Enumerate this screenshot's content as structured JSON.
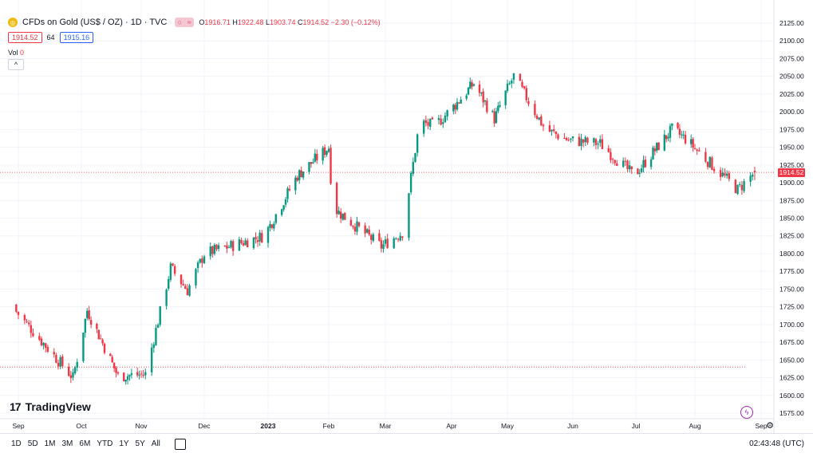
{
  "header": {
    "symbol_title": "CFDs on Gold (US$ / OZ) · 1D · TVC",
    "ohlc": {
      "o_label": "O",
      "o": "1916.71",
      "h_label": "H",
      "h": "1922.48",
      "l_label": "L",
      "l": "1903.74",
      "c_label": "C",
      "c": "1914.52",
      "change": "−2.30 (−0.12%)"
    },
    "bid": "1914.52",
    "spread": "64",
    "ask": "1915.16",
    "vol_label": "Vol",
    "vol_value": "0",
    "collapse_glyph": "^"
  },
  "colors": {
    "up": "#089981",
    "down": "#f23645",
    "grid": "#f0f3fa",
    "accent": "#2962ff"
  },
  "brand": {
    "logo_mark": "17",
    "logo_text": "TradingView"
  },
  "bottom_bar": {
    "ranges": [
      "1D",
      "5D",
      "1M",
      "3M",
      "6M",
      "YTD",
      "1Y",
      "5Y",
      "All"
    ],
    "clock": "02:43:48 (UTC)"
  },
  "icons": {
    "calendar": "calendar-range-icon",
    "settings": "gear-icon",
    "flash": "flash-icon",
    "symbol": "gold-coin-icon"
  },
  "chart_data": {
    "type": "candlestick",
    "y_ticks": [
      "2125.00",
      "2100.00",
      "2075.00",
      "2050.00",
      "2025.00",
      "2000.00",
      "1975.00",
      "1950.00",
      "1925.00",
      "1900.00",
      "1875.00",
      "1850.00",
      "1825.00",
      "1800.00",
      "1775.00",
      "1750.00",
      "1725.00",
      "1700.00",
      "1675.00",
      "1650.00",
      "1625.00",
      "1600.00",
      "1575.00"
    ],
    "ylim": [
      1565,
      2135
    ],
    "x_ticks": [
      "Sep",
      "Oct",
      "Nov",
      "Dec",
      "2023",
      "Feb",
      "Mar",
      "Apr",
      "May",
      "Jun",
      "Jul",
      "Aug",
      "Sep"
    ],
    "last_price": 1914.52,
    "last_price_label": "1914.52",
    "reference_line": 1640,
    "anchors": [
      {
        "date": "Aug 31",
        "close": 1718
      },
      {
        "date": "Sep 27",
        "close": 1625
      },
      {
        "date": "Oct 4",
        "close": 1720
      },
      {
        "date": "Oct 20",
        "close": 1627
      },
      {
        "date": "Nov 3",
        "close": 1630
      },
      {
        "date": "Nov 15",
        "close": 1780
      },
      {
        "date": "Nov 23",
        "close": 1748
      },
      {
        "date": "Dec 1",
        "close": 1800
      },
      {
        "date": "Dec 13",
        "close": 1810
      },
      {
        "date": "Dec 30",
        "close": 1825
      },
      {
        "date": "Jan 16",
        "close": 1910
      },
      {
        "date": "Feb 1",
        "close": 1950
      },
      {
        "date": "Feb 3",
        "close": 1865
      },
      {
        "date": "Feb 27",
        "close": 1810
      },
      {
        "date": "Mar 9",
        "close": 1830
      },
      {
        "date": "Mar 17",
        "close": 1985
      },
      {
        "date": "Mar 24",
        "close": 1980
      },
      {
        "date": "Apr 13",
        "close": 2040
      },
      {
        "date": "Apr 24",
        "close": 1990
      },
      {
        "date": "May 4",
        "close": 2050
      },
      {
        "date": "May 11",
        "close": 2015
      },
      {
        "date": "May 19",
        "close": 1975
      },
      {
        "date": "May 30",
        "close": 1960
      },
      {
        "date": "Jun 14",
        "close": 1955
      },
      {
        "date": "Jun 30",
        "close": 1910
      },
      {
        "date": "Jul 20",
        "close": 1975
      },
      {
        "date": "Jul 28",
        "close": 1960
      },
      {
        "date": "Aug 21",
        "close": 1890
      },
      {
        "date": "Aug 29",
        "close": 1914.52
      }
    ]
  }
}
